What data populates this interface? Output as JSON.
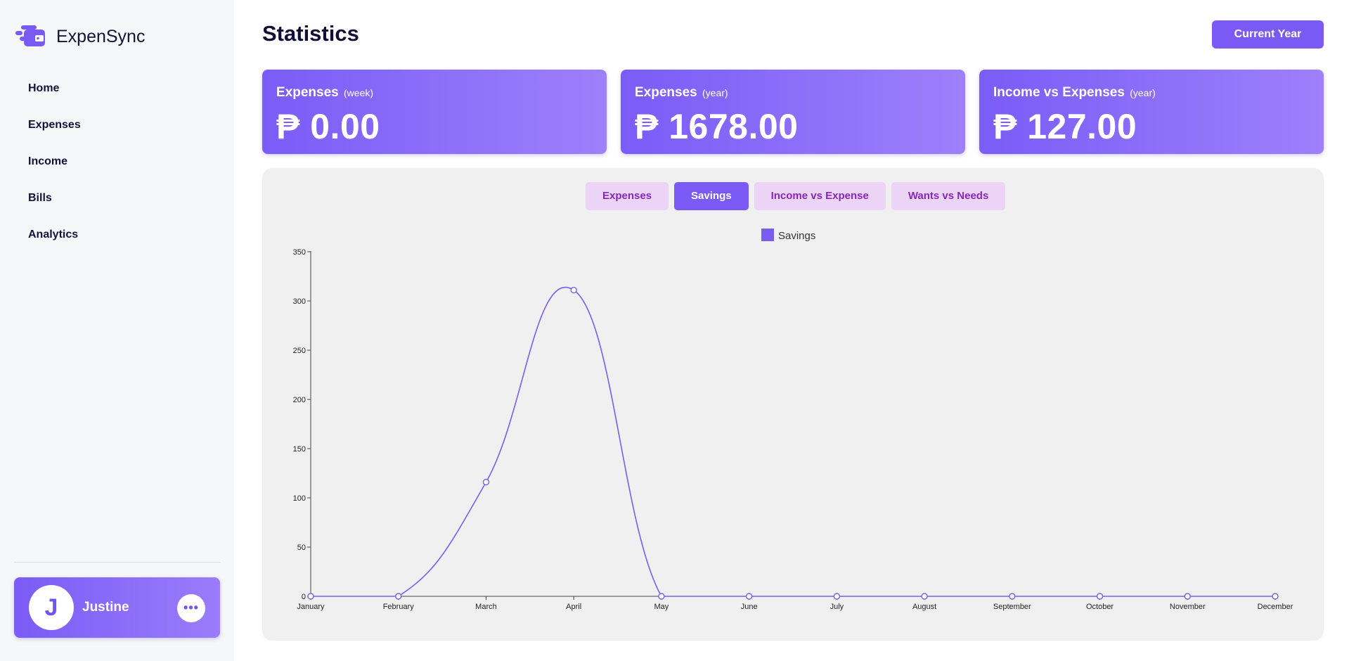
{
  "brand": {
    "name": "ExpenSync",
    "logo_icon": "wallet-logo-icon"
  },
  "nav": [
    {
      "label": "Home"
    },
    {
      "label": "Expenses"
    },
    {
      "label": "Income"
    },
    {
      "label": "Bills"
    },
    {
      "label": "Analytics"
    }
  ],
  "user": {
    "initial": "J",
    "name": "Justine",
    "more_icon": "ellipsis-icon"
  },
  "header": {
    "title": "Statistics",
    "period_button": "Current Year"
  },
  "cards": [
    {
      "title": "Expenses",
      "sub": "(week)",
      "value": "₱ 0.00"
    },
    {
      "title": "Expenses",
      "sub": "(year)",
      "value": "₱ 1678.00"
    },
    {
      "title": "Income vs Expenses",
      "sub": "(year)",
      "value": "₱ 127.00"
    }
  ],
  "tabs": [
    {
      "label": "Expenses",
      "active": false
    },
    {
      "label": "Savings",
      "active": true
    },
    {
      "label": "Income vs Expense",
      "active": false
    },
    {
      "label": "Wants vs Needs",
      "active": false
    }
  ],
  "colors": {
    "accent": "#7a59f5",
    "line": "#7b5cf0",
    "tab_inactive_bg": "#ecd4f7",
    "tab_inactive_text": "#8527b8"
  },
  "chart_data": {
    "type": "line",
    "title": "",
    "xlabel": "",
    "ylabel": "",
    "categories": [
      "January",
      "February",
      "March",
      "April",
      "May",
      "June",
      "July",
      "August",
      "September",
      "October",
      "November",
      "December"
    ],
    "series": [
      {
        "name": "Savings",
        "values": [
          0,
          0,
          116,
          311,
          0,
          0,
          0,
          0,
          0,
          0,
          0,
          0
        ]
      }
    ],
    "ylim": [
      0,
      350
    ],
    "yticks": [
      0,
      50,
      100,
      150,
      200,
      250,
      300,
      350
    ],
    "grid": false,
    "legend": "top-center",
    "curve": "smooth"
  }
}
